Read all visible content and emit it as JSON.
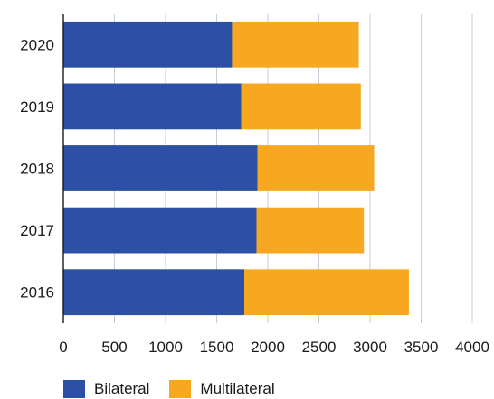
{
  "chart_data": {
    "type": "bar",
    "orientation": "horizontal",
    "stacked": true,
    "title": "",
    "xlabel": "",
    "ylabel": "",
    "categories": [
      "2020",
      "2019",
      "2018",
      "2017",
      "2016"
    ],
    "series": [
      {
        "name": "Bilateral",
        "color": "#2b50a5",
        "values": [
          1650,
          1740,
          1900,
          1890,
          1770
        ]
      },
      {
        "name": "Multilateral",
        "color": "#f7a820",
        "values": [
          1240,
          1170,
          1140,
          1050,
          1610
        ]
      }
    ],
    "xlim": [
      0,
      4000
    ],
    "xticks": [
      "0",
      "500",
      "1000",
      "1500",
      "2000",
      "2500",
      "3000",
      "3500",
      "4000"
    ],
    "grid": "vertical",
    "legend_position": "bottom-left"
  }
}
